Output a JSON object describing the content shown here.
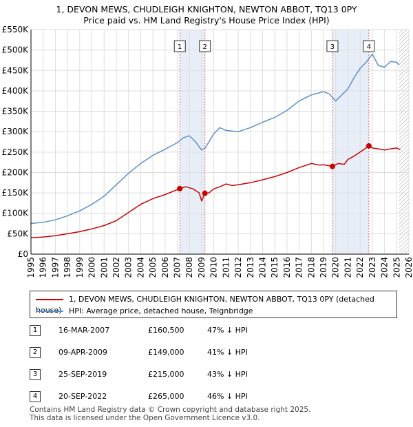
{
  "chart_data": {
    "type": "line",
    "title": "1, DEVON MEWS, CHUDLEIGH KNIGHTON, NEWTON ABBOT, TQ13 0PY",
    "subtitle": "Price paid vs. HM Land Registry's House Price Index (HPI)",
    "x_ticks": [
      "1995",
      "1996",
      "1997",
      "1998",
      "1999",
      "2000",
      "2001",
      "2002",
      "2003",
      "2004",
      "2005",
      "2006",
      "2007",
      "2008",
      "2009",
      "2010",
      "2011",
      "2012",
      "2013",
      "2014",
      "2015",
      "2016",
      "2017",
      "2018",
      "2019",
      "2020",
      "2021",
      "2022",
      "2023",
      "2024",
      "2025",
      "2026"
    ],
    "y_ticks": [
      "£0",
      "£50K",
      "£100K",
      "£150K",
      "£200K",
      "£250K",
      "£300K",
      "£350K",
      "£400K",
      "£450K",
      "£500K",
      "£550K"
    ],
    "xlim": [
      1995,
      2026
    ],
    "ylim": [
      0,
      550000
    ],
    "series": [
      {
        "name": "1, DEVON MEWS, CHUDLEIGH KNIGHTON, NEWTON ABBOT, TQ13 0PY (detached house)",
        "color": "#cc0000",
        "x": [
          1995.0,
          1996.0,
          1997.0,
          1998.0,
          1999.0,
          2000.0,
          2001.0,
          2002.0,
          2002.5,
          2003.0,
          2004.0,
          2005.0,
          2006.0,
          2007.21,
          2007.7,
          2008.3,
          2008.8,
          2009.0,
          2009.27,
          2009.6,
          2010.0,
          2010.5,
          2011.0,
          2011.5,
          2012.0,
          2013.0,
          2014.0,
          2015.0,
          2016.0,
          2017.0,
          2018.0,
          2018.7,
          2019.0,
          2019.73,
          2020.2,
          2020.7,
          2021.0,
          2021.5,
          2022.0,
          2022.72,
          2023.0,
          2023.5,
          2024.0,
          2024.5,
          2025.0,
          2025.3
        ],
        "y": [
          40000,
          42000,
          45000,
          50000,
          55000,
          62000,
          70000,
          82000,
          92000,
          102000,
          122000,
          136000,
          146000,
          160500,
          165000,
          160000,
          150000,
          130000,
          149000,
          150000,
          160000,
          165000,
          172000,
          168000,
          170000,
          175000,
          182000,
          190000,
          200000,
          212000,
          222000,
          218000,
          219000,
          215000,
          222000,
          220000,
          232000,
          240000,
          250000,
          265000,
          260000,
          258000,
          255000,
          258000,
          260000,
          256000
        ]
      },
      {
        "name": "HPI: Average price, detached house, Teignbridge",
        "color": "#5b8fcb",
        "x": [
          1995.0,
          1996.0,
          1997.0,
          1998.0,
          1999.0,
          2000.0,
          2001.0,
          2002.0,
          2003.0,
          2004.0,
          2005.0,
          2006.0,
          2007.0,
          2007.5,
          2008.0,
          2008.5,
          2009.0,
          2009.3,
          2010.0,
          2010.5,
          2011.0,
          2012.0,
          2013.0,
          2014.0,
          2015.0,
          2016.0,
          2017.0,
          2018.0,
          2019.0,
          2019.5,
          2020.0,
          2021.0,
          2021.5,
          2022.0,
          2022.5,
          2023.0,
          2023.5,
          2024.0,
          2024.5,
          2025.0,
          2025.2
        ],
        "y": [
          75000,
          78000,
          84000,
          94000,
          106000,
          122000,
          142000,
          170000,
          198000,
          222000,
          242000,
          257000,
          273000,
          285000,
          290000,
          275000,
          255000,
          260000,
          295000,
          310000,
          303000,
          300000,
          310000,
          323000,
          335000,
          352000,
          375000,
          390000,
          398000,
          392000,
          375000,
          405000,
          432000,
          455000,
          470000,
          490000,
          462000,
          458000,
          472000,
          470000,
          463000
        ]
      }
    ],
    "sale_markers": [
      {
        "label": "1",
        "x": 2007.21,
        "y": 160500
      },
      {
        "label": "2",
        "x": 2009.27,
        "y": 149000
      },
      {
        "label": "3",
        "x": 2019.73,
        "y": 215000
      },
      {
        "label": "4",
        "x": 2022.72,
        "y": 265000
      }
    ],
    "shaded_ranges": [
      [
        2007.21,
        2009.27
      ],
      [
        2019.73,
        2022.72
      ]
    ],
    "hatched_from": 2025.2,
    "grid": true
  },
  "legend": {
    "property_label": "1, DEVON MEWS, CHUDLEIGH KNIGHTON, NEWTON ABBOT, TQ13 0PY (detached house)",
    "hpi_label": "HPI: Average price, detached house, Teignbridge",
    "property_color": "#cc0000",
    "hpi_color": "#5b8fcb"
  },
  "sales": [
    {
      "num": "1",
      "date": "16-MAR-2007",
      "price": "£160,500",
      "hpi": "47% ↓ HPI"
    },
    {
      "num": "2",
      "date": "09-APR-2009",
      "price": "£149,000",
      "hpi": "41% ↓ HPI"
    },
    {
      "num": "3",
      "date": "25-SEP-2019",
      "price": "£215,000",
      "hpi": "43% ↓ HPI"
    },
    {
      "num": "4",
      "date": "20-SEP-2022",
      "price": "£265,000",
      "hpi": "46% ↓ HPI"
    }
  ],
  "footer": {
    "line1": "Contains HM Land Registry data © Crown copyright and database right 2025.",
    "line2": "This data is licensed under the Open Government Licence v3.0."
  }
}
